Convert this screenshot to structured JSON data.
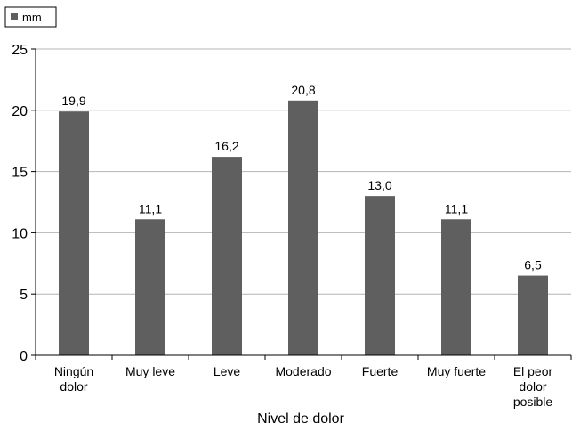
{
  "chart_data": {
    "type": "bar",
    "categories": [
      [
        "Ningún",
        "dolor"
      ],
      [
        "Muy leve"
      ],
      [
        "Leve"
      ],
      [
        "Moderado"
      ],
      [
        "Fuerte"
      ],
      [
        "Muy fuerte"
      ],
      [
        "El peor",
        "dolor",
        "posible"
      ]
    ],
    "series": [
      {
        "name": "mm",
        "values": [
          19.9,
          11.1,
          16.2,
          20.8,
          13.0,
          11.1,
          6.5
        ],
        "labels": [
          "19,9",
          "11,1",
          "16,2",
          "20,8",
          "13,0",
          "11,1",
          "6,5"
        ],
        "color": "#5f5f5f"
      }
    ],
    "xlabel": "Nivel de dolor",
    "ylabel": "",
    "ylim": [
      0,
      25
    ],
    "yticks": [
      0,
      5,
      10,
      15,
      20,
      25
    ],
    "grid": true,
    "legend": "top-left"
  }
}
